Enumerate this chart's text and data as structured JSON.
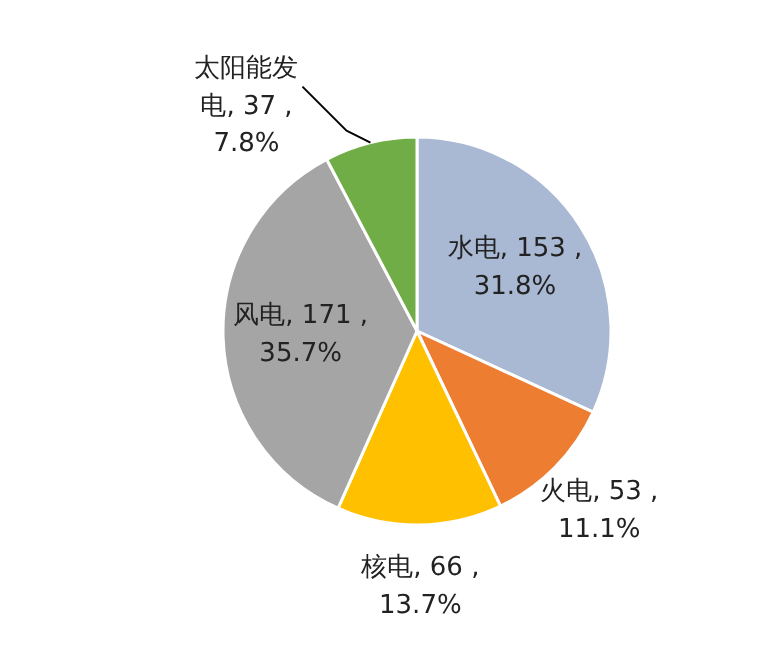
{
  "chart_data": {
    "type": "pie",
    "categories": [
      "水电",
      "火电",
      "核电",
      "风电",
      "太阳能发电"
    ],
    "values": [
      153,
      53,
      66,
      171,
      37
    ],
    "colors": [
      "#a9b8d3",
      "#ed7d31",
      "#ffc000",
      "#a5a5a5",
      "#70ad47"
    ],
    "value_labels": [
      "153 ,\n31.8%",
      "53 ,\n11.1%",
      "66 ,\n13.7%",
      "171 ,\n35.7%",
      "37 ,\n7.8%"
    ],
    "legend": false
  }
}
